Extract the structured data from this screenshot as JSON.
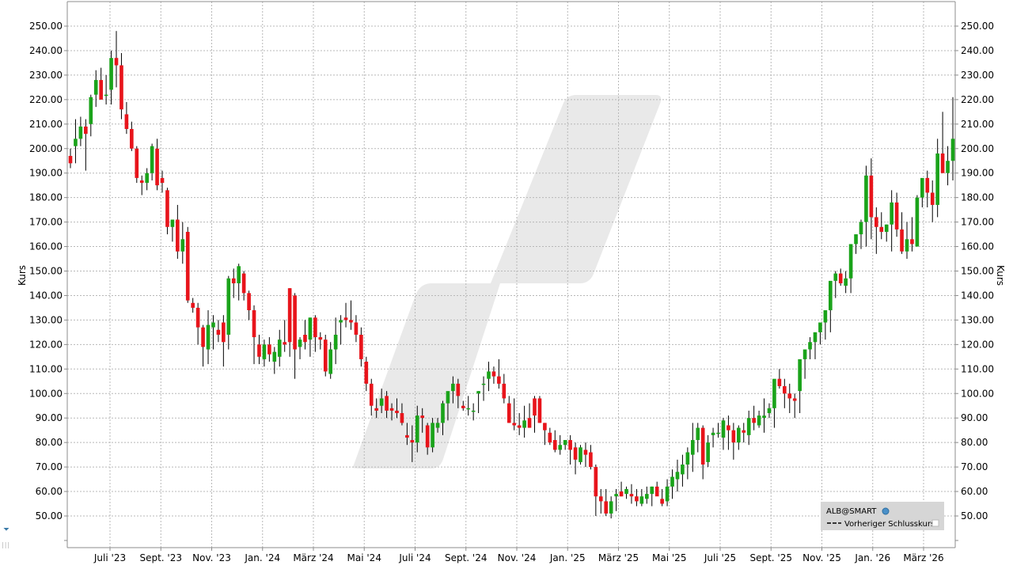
{
  "chart_data": {
    "type": "candlestick",
    "ylabel": "Kurs",
    "ylim": [
      40,
      255
    ],
    "y_ticks": [
      "250.00",
      "240.00",
      "230.00",
      "220.00",
      "210.00",
      "200.00",
      "190.00",
      "180.00",
      "170.00",
      "160.00",
      "150.00",
      "140.00",
      "130.00",
      "120.00",
      "110.00",
      "100.00",
      "90.00",
      "80.00",
      "70.00",
      "60.00",
      "50.00"
    ],
    "x_ticks": [
      "Juli '23",
      "Sept. '23",
      "Nov. '23",
      "Jan. '24",
      "März '24",
      "Mai '24",
      "Juli '24",
      "Sept. '24",
      "Nov. '24",
      "Jan. '25",
      "März '25",
      "Mai '25",
      "Juli '25",
      "Sept. '25",
      "Nov. '25",
      "Jan. '26",
      "März '26"
    ],
    "grid": true,
    "legend_position": "bottom-right",
    "legend": {
      "symbol": "ALB@SMART",
      "previous_close_label": "Vorheriger Schlusskurs"
    },
    "colors": {
      "up": "#1aa31a",
      "down": "#e8141b",
      "wick": "#000000",
      "grid": "#b8b8b8",
      "watermark": "#e8e8e8"
    },
    "candles": [
      [
        197,
        192,
        200,
        194
      ],
      [
        201,
        194,
        212,
        204
      ],
      [
        204,
        201,
        213,
        209
      ],
      [
        209,
        191,
        212,
        206
      ],
      [
        210,
        205,
        222,
        221
      ],
      [
        222,
        217,
        232,
        228
      ],
      [
        228,
        220,
        233,
        220
      ],
      [
        222,
        218,
        230,
        222
      ],
      [
        224,
        218,
        240,
        237
      ],
      [
        237,
        225,
        248,
        234
      ],
      [
        234,
        212,
        239,
        216
      ],
      [
        214,
        206,
        219,
        208
      ],
      [
        208,
        199,
        211,
        200
      ],
      [
        200,
        186,
        201,
        188
      ],
      [
        187,
        181,
        189,
        186
      ],
      [
        186,
        183,
        192,
        190
      ],
      [
        190,
        187,
        202,
        201
      ],
      [
        200,
        183,
        204,
        185
      ],
      [
        188,
        182,
        191,
        186
      ],
      [
        183,
        165,
        184,
        168
      ],
      [
        168,
        162,
        171,
        171
      ],
      [
        171,
        155,
        177,
        158
      ],
      [
        158,
        153,
        170,
        163
      ],
      [
        166,
        137,
        168,
        138
      ],
      [
        137,
        133,
        139,
        135
      ],
      [
        135,
        120,
        137,
        127
      ],
      [
        127,
        111,
        128,
        119
      ],
      [
        118,
        112,
        134,
        128
      ],
      [
        127,
        118,
        132,
        129
      ],
      [
        126,
        121,
        130,
        124
      ],
      [
        129,
        111,
        132,
        121
      ],
      [
        124,
        118,
        148,
        147
      ],
      [
        147,
        139,
        151,
        145
      ],
      [
        145,
        138,
        153,
        152
      ],
      [
        149,
        138,
        150,
        141
      ],
      [
        141,
        130,
        142,
        134
      ],
      [
        134,
        112,
        136,
        123
      ],
      [
        120,
        112,
        124,
        115
      ],
      [
        114,
        111,
        122,
        120
      ],
      [
        120,
        113,
        123,
        116
      ],
      [
        113,
        108,
        119,
        117
      ],
      [
        115,
        111,
        126,
        122
      ],
      [
        121,
        117,
        130,
        120
      ],
      [
        143,
        115,
        143,
        121
      ],
      [
        140,
        106,
        141,
        118
      ],
      [
        119,
        114,
        123,
        122
      ],
      [
        124,
        118,
        130,
        121
      ],
      [
        122,
        115,
        131,
        131
      ],
      [
        131,
        117,
        132,
        123
      ],
      [
        123,
        118,
        125,
        122
      ],
      [
        122,
        107,
        124,
        109
      ],
      [
        108,
        106,
        121,
        118
      ],
      [
        118,
        112,
        131,
        124
      ],
      [
        129,
        120,
        132,
        130
      ],
      [
        131,
        127,
        137,
        130
      ],
      [
        130,
        126,
        138,
        129
      ],
      [
        129,
        121,
        132,
        124
      ],
      [
        124,
        111,
        127,
        114
      ],
      [
        113,
        101,
        115,
        104
      ],
      [
        104,
        91,
        106,
        95
      ],
      [
        94,
        90,
        98,
        93
      ],
      [
        95,
        92,
        102,
        98
      ],
      [
        99,
        90,
        101,
        93
      ],
      [
        94,
        89,
        96,
        93
      ],
      [
        93,
        90,
        98,
        92
      ],
      [
        92,
        87,
        96,
        88
      ],
      [
        83,
        79,
        88,
        82
      ],
      [
        81,
        72,
        87,
        80
      ],
      [
        80,
        76,
        95,
        91
      ],
      [
        91,
        84,
        94,
        90
      ],
      [
        87,
        75,
        88,
        78
      ],
      [
        78,
        76,
        90,
        88
      ],
      [
        86,
        84,
        90,
        88
      ],
      [
        88,
        83,
        97,
        96
      ],
      [
        96,
        89,
        99,
        101
      ],
      [
        101,
        96,
        107,
        104
      ],
      [
        104,
        94,
        106,
        99
      ],
      [
        95,
        93,
        97,
        94
      ],
      [
        94,
        91,
        99,
        94
      ],
      [
        93,
        89,
        96,
        93
      ],
      [
        100,
        92,
        101,
        101
      ],
      [
        104,
        97,
        107,
        104
      ],
      [
        106,
        101,
        113,
        109
      ],
      [
        109,
        104,
        111,
        107
      ],
      [
        107,
        102,
        114,
        104
      ],
      [
        104,
        96,
        108,
        98
      ],
      [
        96,
        88,
        99,
        88
      ],
      [
        88,
        85,
        98,
        87
      ],
      [
        87,
        83,
        92,
        86
      ],
      [
        86,
        82,
        95,
        89
      ],
      [
        90,
        86,
        96,
        86
      ],
      [
        98,
        84,
        99,
        91
      ],
      [
        98,
        88,
        99,
        88
      ],
      [
        88,
        79,
        88,
        85
      ],
      [
        84,
        79,
        86,
        80
      ],
      [
        81,
        76,
        85,
        77
      ],
      [
        77,
        75,
        83,
        79
      ],
      [
        79,
        77,
        81,
        81
      ],
      [
        81,
        71,
        83,
        77
      ],
      [
        78,
        67,
        80,
        73
      ],
      [
        72,
        71,
        79,
        78
      ],
      [
        77,
        70,
        80,
        75
      ],
      [
        76,
        69,
        79,
        70
      ],
      [
        70,
        50,
        71,
        58
      ],
      [
        58,
        51,
        61,
        56
      ],
      [
        56,
        50,
        61,
        51
      ],
      [
        51,
        49,
        58,
        56
      ],
      [
        58,
        52,
        61,
        59
      ],
      [
        60,
        58,
        64,
        58
      ],
      [
        59,
        57,
        62,
        61
      ],
      [
        59,
        55,
        63,
        58
      ],
      [
        58,
        54,
        61,
        56
      ],
      [
        55,
        54,
        61,
        58
      ],
      [
        57,
        55,
        62,
        59
      ],
      [
        59,
        54,
        62,
        62
      ],
      [
        62,
        59,
        64,
        58
      ],
      [
        57,
        54,
        61,
        55
      ],
      [
        56,
        54,
        65,
        62
      ],
      [
        62,
        57,
        69,
        66
      ],
      [
        65,
        60,
        73,
        68
      ],
      [
        67,
        62,
        75,
        71
      ],
      [
        71,
        65,
        78,
        76
      ],
      [
        75,
        68,
        88,
        81
      ],
      [
        81,
        76,
        88,
        86
      ],
      [
        86,
        65,
        87,
        71
      ],
      [
        72,
        70,
        83,
        80
      ],
      [
        83,
        78,
        86,
        84
      ],
      [
        84,
        82,
        88,
        84
      ],
      [
        82,
        77,
        90,
        89
      ],
      [
        87,
        77,
        91,
        85
      ],
      [
        85,
        73,
        88,
        80
      ],
      [
        80,
        77,
        87,
        86
      ],
      [
        85,
        80,
        88,
        84
      ],
      [
        83,
        79,
        93,
        90
      ],
      [
        90,
        85,
        95,
        88
      ],
      [
        87,
        86,
        93,
        91
      ],
      [
        90,
        84,
        98,
        91
      ],
      [
        92,
        90,
        96,
        94
      ],
      [
        94,
        86,
        103,
        106
      ],
      [
        106,
        102,
        110,
        103
      ],
      [
        103,
        94,
        106,
        100
      ],
      [
        100,
        92,
        104,
        98
      ],
      [
        98,
        90,
        100,
        97
      ],
      [
        101,
        92,
        112,
        114
      ],
      [
        114,
        106,
        117,
        118
      ],
      [
        118,
        114,
        123,
        121
      ],
      [
        121,
        114,
        125,
        125
      ],
      [
        125,
        120,
        128,
        129
      ],
      [
        129,
        122,
        132,
        134
      ],
      [
        134,
        125,
        141,
        146
      ],
      [
        146,
        139,
        150,
        149
      ],
      [
        149,
        144,
        151,
        145
      ],
      [
        144,
        141,
        150,
        147
      ],
      [
        147,
        141,
        161,
        161
      ],
      [
        161,
        157,
        165,
        165
      ],
      [
        165,
        159,
        171,
        170
      ],
      [
        170,
        160,
        193,
        189
      ],
      [
        189,
        163,
        196,
        172
      ],
      [
        172,
        157,
        176,
        168
      ],
      [
        168,
        163,
        174,
        166
      ],
      [
        166,
        162,
        169,
        169
      ],
      [
        169,
        158,
        183,
        178
      ],
      [
        178,
        164,
        182,
        167
      ],
      [
        167,
        157,
        174,
        158
      ],
      [
        158,
        155,
        170,
        163
      ],
      [
        163,
        158,
        172,
        161
      ],
      [
        160,
        160,
        181,
        180
      ],
      [
        180,
        176,
        184,
        188
      ],
      [
        188,
        176,
        191,
        182
      ],
      [
        182,
        170,
        187,
        177
      ],
      [
        177,
        172,
        204,
        198
      ],
      [
        198,
        190,
        215,
        190
      ],
      [
        190,
        185,
        201,
        195
      ],
      [
        195,
        187,
        221,
        204
      ]
    ]
  }
}
